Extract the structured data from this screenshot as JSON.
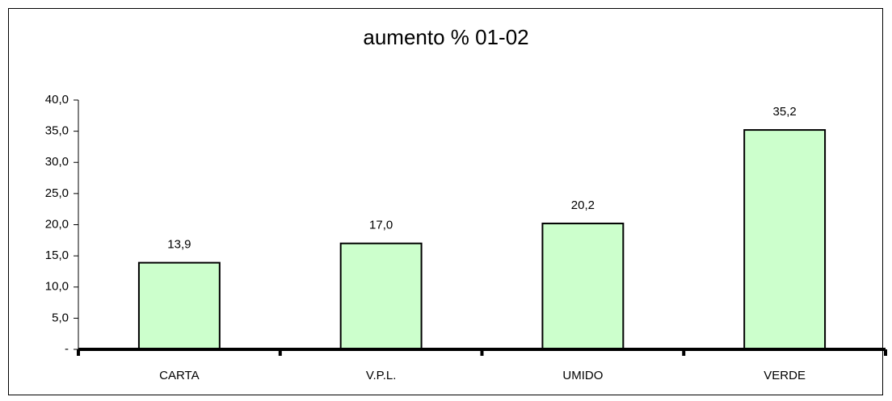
{
  "chart_data": {
    "type": "bar",
    "title": "aumento % 01-02",
    "categories": [
      "CARTA",
      "V.P.L.",
      "UMIDO",
      "VERDE"
    ],
    "values": [
      13.9,
      17.0,
      20.2,
      35.2
    ],
    "value_labels": [
      "13,9",
      "17,0",
      "20,2",
      "35,2"
    ],
    "color": "#ccffcc",
    "ylim": [
      0,
      40
    ],
    "yticks": [
      {
        "value": 0,
        "label": "-"
      },
      {
        "value": 5,
        "label": "5,0"
      },
      {
        "value": 10,
        "label": "10,0"
      },
      {
        "value": 15,
        "label": "15,0"
      },
      {
        "value": 20,
        "label": "20,0"
      },
      {
        "value": 25,
        "label": "25,0"
      },
      {
        "value": 30,
        "label": "30,0"
      },
      {
        "value": 35,
        "label": "35,0"
      },
      {
        "value": 40,
        "label": "40,0"
      }
    ],
    "grid": false
  }
}
